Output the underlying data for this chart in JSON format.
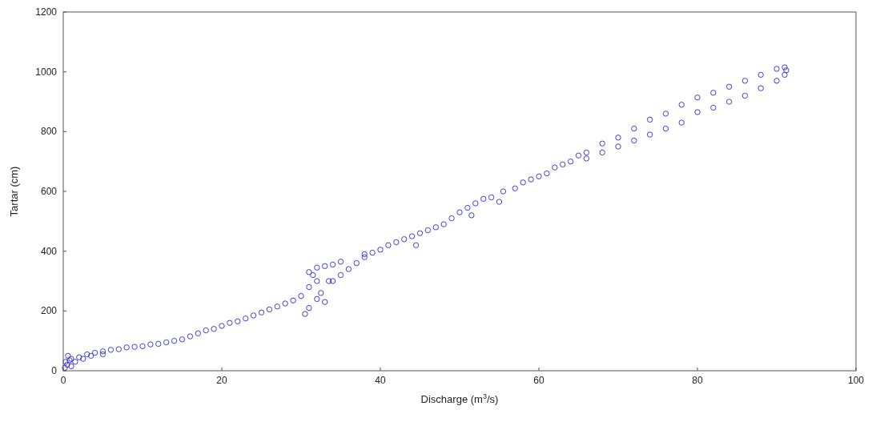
{
  "chart_data": {
    "type": "scatter",
    "xlabel": "Discharge (m$^{3}$/s)",
    "ylabel": "Tartar (cm)",
    "xlim": [
      0,
      100
    ],
    "ylim": [
      0,
      1200
    ],
    "xticks": [
      0,
      20,
      40,
      60,
      80,
      100
    ],
    "yticks": [
      0,
      200,
      400,
      600,
      800,
      1000,
      1200
    ],
    "grid": false,
    "marker": "circle",
    "series": [
      {
        "color": "#2a2ad6",
        "x": [
          0.2,
          0.3,
          0.5,
          0.6,
          0.8,
          1,
          1,
          1.5,
          2,
          2.5,
          3,
          3.5,
          4,
          5,
          5,
          6,
          7,
          8,
          9,
          10,
          11,
          12,
          13,
          14,
          15,
          16,
          17,
          18,
          19,
          20,
          21,
          22,
          23,
          24,
          25,
          26,
          27,
          28,
          29,
          30,
          30.5,
          31,
          31,
          31.5,
          32,
          32,
          32.5,
          33,
          33.5,
          31,
          32,
          33,
          34,
          35,
          34,
          35,
          36,
          37,
          38,
          38,
          39,
          40,
          41,
          42,
          43,
          44,
          44.5,
          45,
          46,
          47,
          48,
          49,
          50,
          51,
          52,
          51.5,
          53,
          54,
          55,
          55.5,
          57,
          58,
          59,
          60,
          61,
          62,
          63,
          64,
          65,
          66,
          68,
          70,
          72,
          74,
          76,
          78,
          80,
          82,
          84,
          86,
          88,
          90,
          91,
          91.2,
          66,
          68,
          70,
          72,
          74,
          76,
          78,
          80,
          82,
          84,
          86,
          88,
          90,
          91
        ],
        "values": [
          10,
          30,
          20,
          50,
          35,
          15,
          40,
          30,
          45,
          40,
          55,
          50,
          60,
          65,
          55,
          70,
          72,
          78,
          80,
          82,
          88,
          90,
          95,
          100,
          105,
          115,
          125,
          135,
          140,
          150,
          160,
          165,
          175,
          185,
          195,
          205,
          215,
          225,
          235,
          250,
          190,
          210,
          280,
          320,
          300,
          240,
          260,
          230,
          300,
          330,
          345,
          350,
          355,
          365,
          300,
          320,
          340,
          360,
          380,
          390,
          395,
          405,
          420,
          430,
          440,
          450,
          420,
          460,
          470,
          480,
          490,
          510,
          530,
          545,
          560,
          520,
          575,
          580,
          565,
          600,
          610,
          630,
          640,
          650,
          660,
          680,
          690,
          700,
          720,
          730,
          760,
          780,
          810,
          840,
          860,
          890,
          914,
          930,
          950,
          970,
          990,
          1010,
          1015,
          1005,
          710,
          730,
          750,
          770,
          790,
          810,
          830,
          865,
          880,
          900,
          920,
          945,
          970,
          990
        ]
      }
    ]
  }
}
